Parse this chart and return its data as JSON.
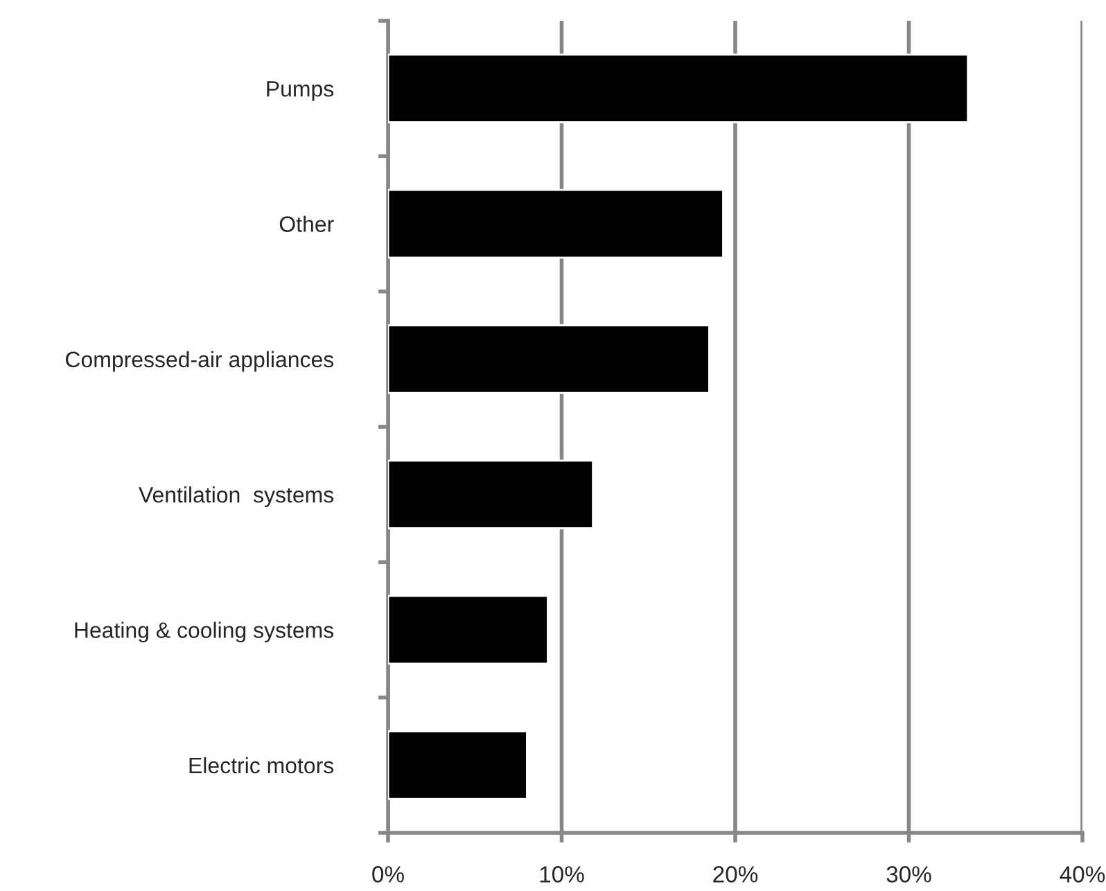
{
  "chart_data": {
    "type": "bar",
    "orientation": "horizontal",
    "categories": [
      "Pumps",
      "Other",
      "Compressed-air appliances",
      "Ventilation  systems",
      "Heating & cooling systems",
      "Electric motors"
    ],
    "values": [
      33.4,
      19.3,
      18.5,
      11.8,
      9.2,
      8.0
    ],
    "color": "#000000",
    "xlim": [
      0,
      40
    ],
    "xticks": [
      {
        "value": 0,
        "label": "0%"
      },
      {
        "value": 10,
        "label": "10%"
      },
      {
        "value": 20,
        "label": "20%"
      },
      {
        "value": 30,
        "label": "30%"
      },
      {
        "value": 40,
        "label": "40%"
      }
    ],
    "grid": "x"
  }
}
